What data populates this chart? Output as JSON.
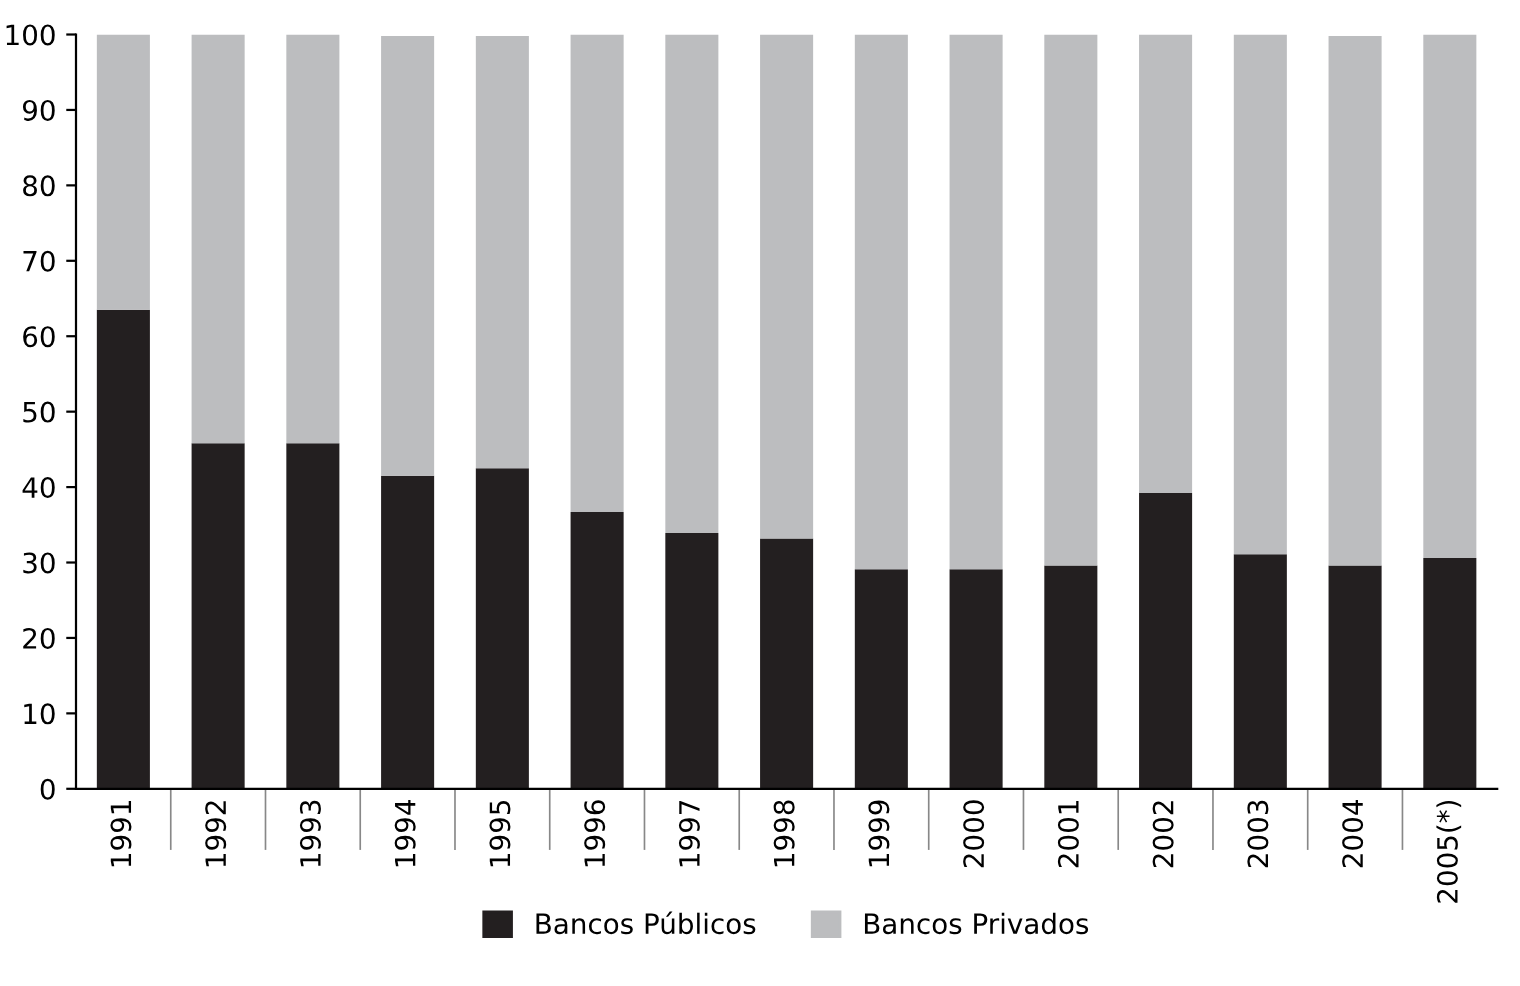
{
  "chart_data": {
    "type": "bar",
    "stacked": true,
    "categories": [
      "1991",
      "1992",
      "1993",
      "1994",
      "1995",
      "1996",
      "1997",
      "1998",
      "1999",
      "2000",
      "2001",
      "2002",
      "2003",
      "2004",
      "2005(*)"
    ],
    "series": [
      {
        "name": "Bancos Públicos",
        "color": "#231f20",
        "values": [
          63.5,
          45.8,
          45.8,
          41.5,
          42.5,
          36.7,
          33.9,
          33.2,
          29.1,
          29.1,
          29.6,
          39.2,
          31.1,
          29.6,
          30.6
        ]
      },
      {
        "name": "Bancos Privados",
        "color": "#bcbdbf",
        "values": [
          36.5,
          54.2,
          54.2,
          58.3,
          57.3,
          63.3,
          66.1,
          66.8,
          70.9,
          70.9,
          70.4,
          60.8,
          68.9,
          70.2,
          69.4
        ]
      }
    ],
    "ylim": [
      0,
      100
    ],
    "yticks": [
      0,
      10,
      20,
      30,
      40,
      50,
      60,
      70,
      80,
      90,
      100
    ],
    "grid": false,
    "legend": "bottom"
  }
}
